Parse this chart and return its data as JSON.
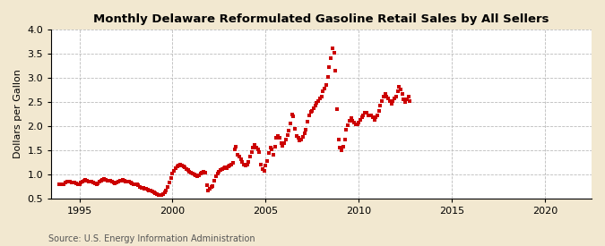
{
  "title": "Monthly Delaware Reformulated Gasoline Retail Sales by All Sellers",
  "ylabel": "Dollars per Gallon",
  "source": "Source: U.S. Energy Information Administration",
  "ylim": [
    0.5,
    4.0
  ],
  "xlim": [
    1993.5,
    2022.5
  ],
  "yticks": [
    0.5,
    1.0,
    1.5,
    2.0,
    2.5,
    3.0,
    3.5,
    4.0
  ],
  "xticks": [
    1995,
    2000,
    2005,
    2010,
    2015,
    2020
  ],
  "fig_bg_color": "#F2E8D0",
  "plot_bg_color": "#FFFFFF",
  "dot_color": "#CC0000",
  "dot_size": 3.5,
  "data": [
    [
      1993.917,
      0.79
    ],
    [
      1994.0,
      0.8
    ],
    [
      1994.083,
      0.8
    ],
    [
      1994.167,
      0.8
    ],
    [
      1994.25,
      0.82
    ],
    [
      1994.333,
      0.84
    ],
    [
      1994.417,
      0.85
    ],
    [
      1994.5,
      0.84
    ],
    [
      1994.583,
      0.83
    ],
    [
      1994.667,
      0.83
    ],
    [
      1994.75,
      0.82
    ],
    [
      1994.833,
      0.81
    ],
    [
      1994.917,
      0.79
    ],
    [
      1995.0,
      0.8
    ],
    [
      1995.083,
      0.83
    ],
    [
      1995.167,
      0.85
    ],
    [
      1995.25,
      0.86
    ],
    [
      1995.333,
      0.88
    ],
    [
      1995.417,
      0.87
    ],
    [
      1995.5,
      0.85
    ],
    [
      1995.583,
      0.84
    ],
    [
      1995.667,
      0.84
    ],
    [
      1995.75,
      0.83
    ],
    [
      1995.833,
      0.81
    ],
    [
      1995.917,
      0.8
    ],
    [
      1996.0,
      0.81
    ],
    [
      1996.083,
      0.84
    ],
    [
      1996.167,
      0.87
    ],
    [
      1996.25,
      0.89
    ],
    [
      1996.333,
      0.9
    ],
    [
      1996.417,
      0.89
    ],
    [
      1996.5,
      0.87
    ],
    [
      1996.583,
      0.86
    ],
    [
      1996.667,
      0.86
    ],
    [
      1996.75,
      0.85
    ],
    [
      1996.833,
      0.83
    ],
    [
      1996.917,
      0.81
    ],
    [
      1997.0,
      0.82
    ],
    [
      1997.083,
      0.84
    ],
    [
      1997.167,
      0.86
    ],
    [
      1997.25,
      0.87
    ],
    [
      1997.333,
      0.88
    ],
    [
      1997.417,
      0.87
    ],
    [
      1997.5,
      0.85
    ],
    [
      1997.583,
      0.84
    ],
    [
      1997.667,
      0.84
    ],
    [
      1997.75,
      0.83
    ],
    [
      1997.833,
      0.81
    ],
    [
      1997.917,
      0.8
    ],
    [
      1998.0,
      0.8
    ],
    [
      1998.083,
      0.79
    ],
    [
      1998.167,
      0.77
    ],
    [
      1998.25,
      0.74
    ],
    [
      1998.333,
      0.72
    ],
    [
      1998.417,
      0.71
    ],
    [
      1998.5,
      0.7
    ],
    [
      1998.583,
      0.69
    ],
    [
      1998.667,
      0.68
    ],
    [
      1998.75,
      0.67
    ],
    [
      1998.833,
      0.66
    ],
    [
      1998.917,
      0.64
    ],
    [
      1999.0,
      0.63
    ],
    [
      1999.083,
      0.61
    ],
    [
      1999.167,
      0.58
    ],
    [
      1999.25,
      0.57
    ],
    [
      1999.333,
      0.56
    ],
    [
      1999.417,
      0.57
    ],
    [
      1999.5,
      0.58
    ],
    [
      1999.583,
      0.62
    ],
    [
      1999.667,
      0.67
    ],
    [
      1999.75,
      0.73
    ],
    [
      1999.833,
      0.83
    ],
    [
      1999.917,
      0.93
    ],
    [
      2000.0,
      1.02
    ],
    [
      2000.083,
      1.07
    ],
    [
      2000.167,
      1.12
    ],
    [
      2000.25,
      1.16
    ],
    [
      2000.333,
      1.19
    ],
    [
      2000.417,
      1.21
    ],
    [
      2000.5,
      1.19
    ],
    [
      2000.583,
      1.16
    ],
    [
      2000.667,
      1.14
    ],
    [
      2000.75,
      1.11
    ],
    [
      2000.833,
      1.09
    ],
    [
      2000.917,
      1.06
    ],
    [
      2001.0,
      1.03
    ],
    [
      2001.083,
      1.01
    ],
    [
      2001.167,
      0.99
    ],
    [
      2001.25,
      0.97
    ],
    [
      2001.333,
      0.96
    ],
    [
      2001.417,
      0.98
    ],
    [
      2001.5,
      1.01
    ],
    [
      2001.583,
      1.03
    ],
    [
      2001.667,
      1.06
    ],
    [
      2001.75,
      1.04
    ],
    [
      2001.833,
      0.78
    ],
    [
      2001.917,
      0.67
    ],
    [
      2002.0,
      0.7
    ],
    [
      2002.083,
      0.73
    ],
    [
      2002.167,
      0.76
    ],
    [
      2002.25,
      0.86
    ],
    [
      2002.333,
      0.96
    ],
    [
      2002.417,
      1.01
    ],
    [
      2002.5,
      1.06
    ],
    [
      2002.583,
      1.09
    ],
    [
      2002.667,
      1.11
    ],
    [
      2002.75,
      1.13
    ],
    [
      2002.833,
      1.15
    ],
    [
      2002.917,
      1.13
    ],
    [
      2003.0,
      1.16
    ],
    [
      2003.083,
      1.19
    ],
    [
      2003.167,
      1.21
    ],
    [
      2003.25,
      1.23
    ],
    [
      2003.333,
      1.52
    ],
    [
      2003.417,
      1.57
    ],
    [
      2003.5,
      1.41
    ],
    [
      2003.583,
      1.36
    ],
    [
      2003.667,
      1.31
    ],
    [
      2003.75,
      1.26
    ],
    [
      2003.833,
      1.21
    ],
    [
      2003.917,
      1.19
    ],
    [
      2004.0,
      1.21
    ],
    [
      2004.083,
      1.26
    ],
    [
      2004.167,
      1.36
    ],
    [
      2004.25,
      1.46
    ],
    [
      2004.333,
      1.56
    ],
    [
      2004.417,
      1.61
    ],
    [
      2004.5,
      1.56
    ],
    [
      2004.583,
      1.51
    ],
    [
      2004.667,
      1.46
    ],
    [
      2004.75,
      1.21
    ],
    [
      2004.833,
      1.11
    ],
    [
      2004.917,
      1.08
    ],
    [
      2005.0,
      1.18
    ],
    [
      2005.083,
      1.28
    ],
    [
      2005.167,
      1.45
    ],
    [
      2005.25,
      1.55
    ],
    [
      2005.333,
      1.52
    ],
    [
      2005.417,
      1.4
    ],
    [
      2005.5,
      1.58
    ],
    [
      2005.583,
      1.75
    ],
    [
      2005.667,
      1.8
    ],
    [
      2005.75,
      1.75
    ],
    [
      2005.833,
      1.65
    ],
    [
      2005.917,
      1.6
    ],
    [
      2006.0,
      1.65
    ],
    [
      2006.083,
      1.72
    ],
    [
      2006.167,
      1.82
    ],
    [
      2006.25,
      1.9
    ],
    [
      2006.333,
      2.05
    ],
    [
      2006.417,
      2.25
    ],
    [
      2006.5,
      2.2
    ],
    [
      2006.583,
      1.95
    ],
    [
      2006.667,
      1.8
    ],
    [
      2006.75,
      1.75
    ],
    [
      2006.833,
      1.7
    ],
    [
      2006.917,
      1.72
    ],
    [
      2007.0,
      1.78
    ],
    [
      2007.083,
      1.85
    ],
    [
      2007.167,
      1.92
    ],
    [
      2007.25,
      2.1
    ],
    [
      2007.333,
      2.22
    ],
    [
      2007.417,
      2.3
    ],
    [
      2007.5,
      2.32
    ],
    [
      2007.583,
      2.38
    ],
    [
      2007.667,
      2.42
    ],
    [
      2007.75,
      2.48
    ],
    [
      2007.833,
      2.52
    ],
    [
      2007.917,
      2.58
    ],
    [
      2008.0,
      2.62
    ],
    [
      2008.083,
      2.72
    ],
    [
      2008.167,
      2.78
    ],
    [
      2008.25,
      2.85
    ],
    [
      2008.333,
      3.02
    ],
    [
      2008.417,
      3.22
    ],
    [
      2008.5,
      3.42
    ],
    [
      2008.583,
      3.62
    ],
    [
      2008.667,
      3.52
    ],
    [
      2008.75,
      3.15
    ],
    [
      2008.833,
      2.35
    ],
    [
      2008.917,
      1.72
    ],
    [
      2009.0,
      1.55
    ],
    [
      2009.083,
      1.5
    ],
    [
      2009.167,
      1.58
    ],
    [
      2009.25,
      1.72
    ],
    [
      2009.333,
      1.92
    ],
    [
      2009.417,
      2.02
    ],
    [
      2009.5,
      2.12
    ],
    [
      2009.583,
      2.17
    ],
    [
      2009.667,
      2.12
    ],
    [
      2009.75,
      2.08
    ],
    [
      2009.833,
      2.03
    ],
    [
      2009.917,
      2.03
    ],
    [
      2010.0,
      2.08
    ],
    [
      2010.083,
      2.13
    ],
    [
      2010.167,
      2.18
    ],
    [
      2010.25,
      2.22
    ],
    [
      2010.333,
      2.28
    ],
    [
      2010.417,
      2.28
    ],
    [
      2010.5,
      2.23
    ],
    [
      2010.583,
      2.23
    ],
    [
      2010.667,
      2.23
    ],
    [
      2010.75,
      2.18
    ],
    [
      2010.833,
      2.13
    ],
    [
      2010.917,
      2.18
    ],
    [
      2011.0,
      2.22
    ],
    [
      2011.083,
      2.32
    ],
    [
      2011.167,
      2.42
    ],
    [
      2011.25,
      2.52
    ],
    [
      2011.333,
      2.62
    ],
    [
      2011.417,
      2.67
    ],
    [
      2011.5,
      2.62
    ],
    [
      2011.583,
      2.57
    ],
    [
      2011.667,
      2.52
    ],
    [
      2011.75,
      2.47
    ],
    [
      2011.833,
      2.52
    ],
    [
      2011.917,
      2.57
    ],
    [
      2012.0,
      2.62
    ],
    [
      2012.083,
      2.72
    ],
    [
      2012.167,
      2.82
    ],
    [
      2012.25,
      2.77
    ],
    [
      2012.333,
      2.67
    ],
    [
      2012.417,
      2.55
    ],
    [
      2012.5,
      2.5
    ],
    [
      2012.583,
      2.55
    ],
    [
      2012.667,
      2.62
    ],
    [
      2012.75,
      2.52
    ]
  ]
}
